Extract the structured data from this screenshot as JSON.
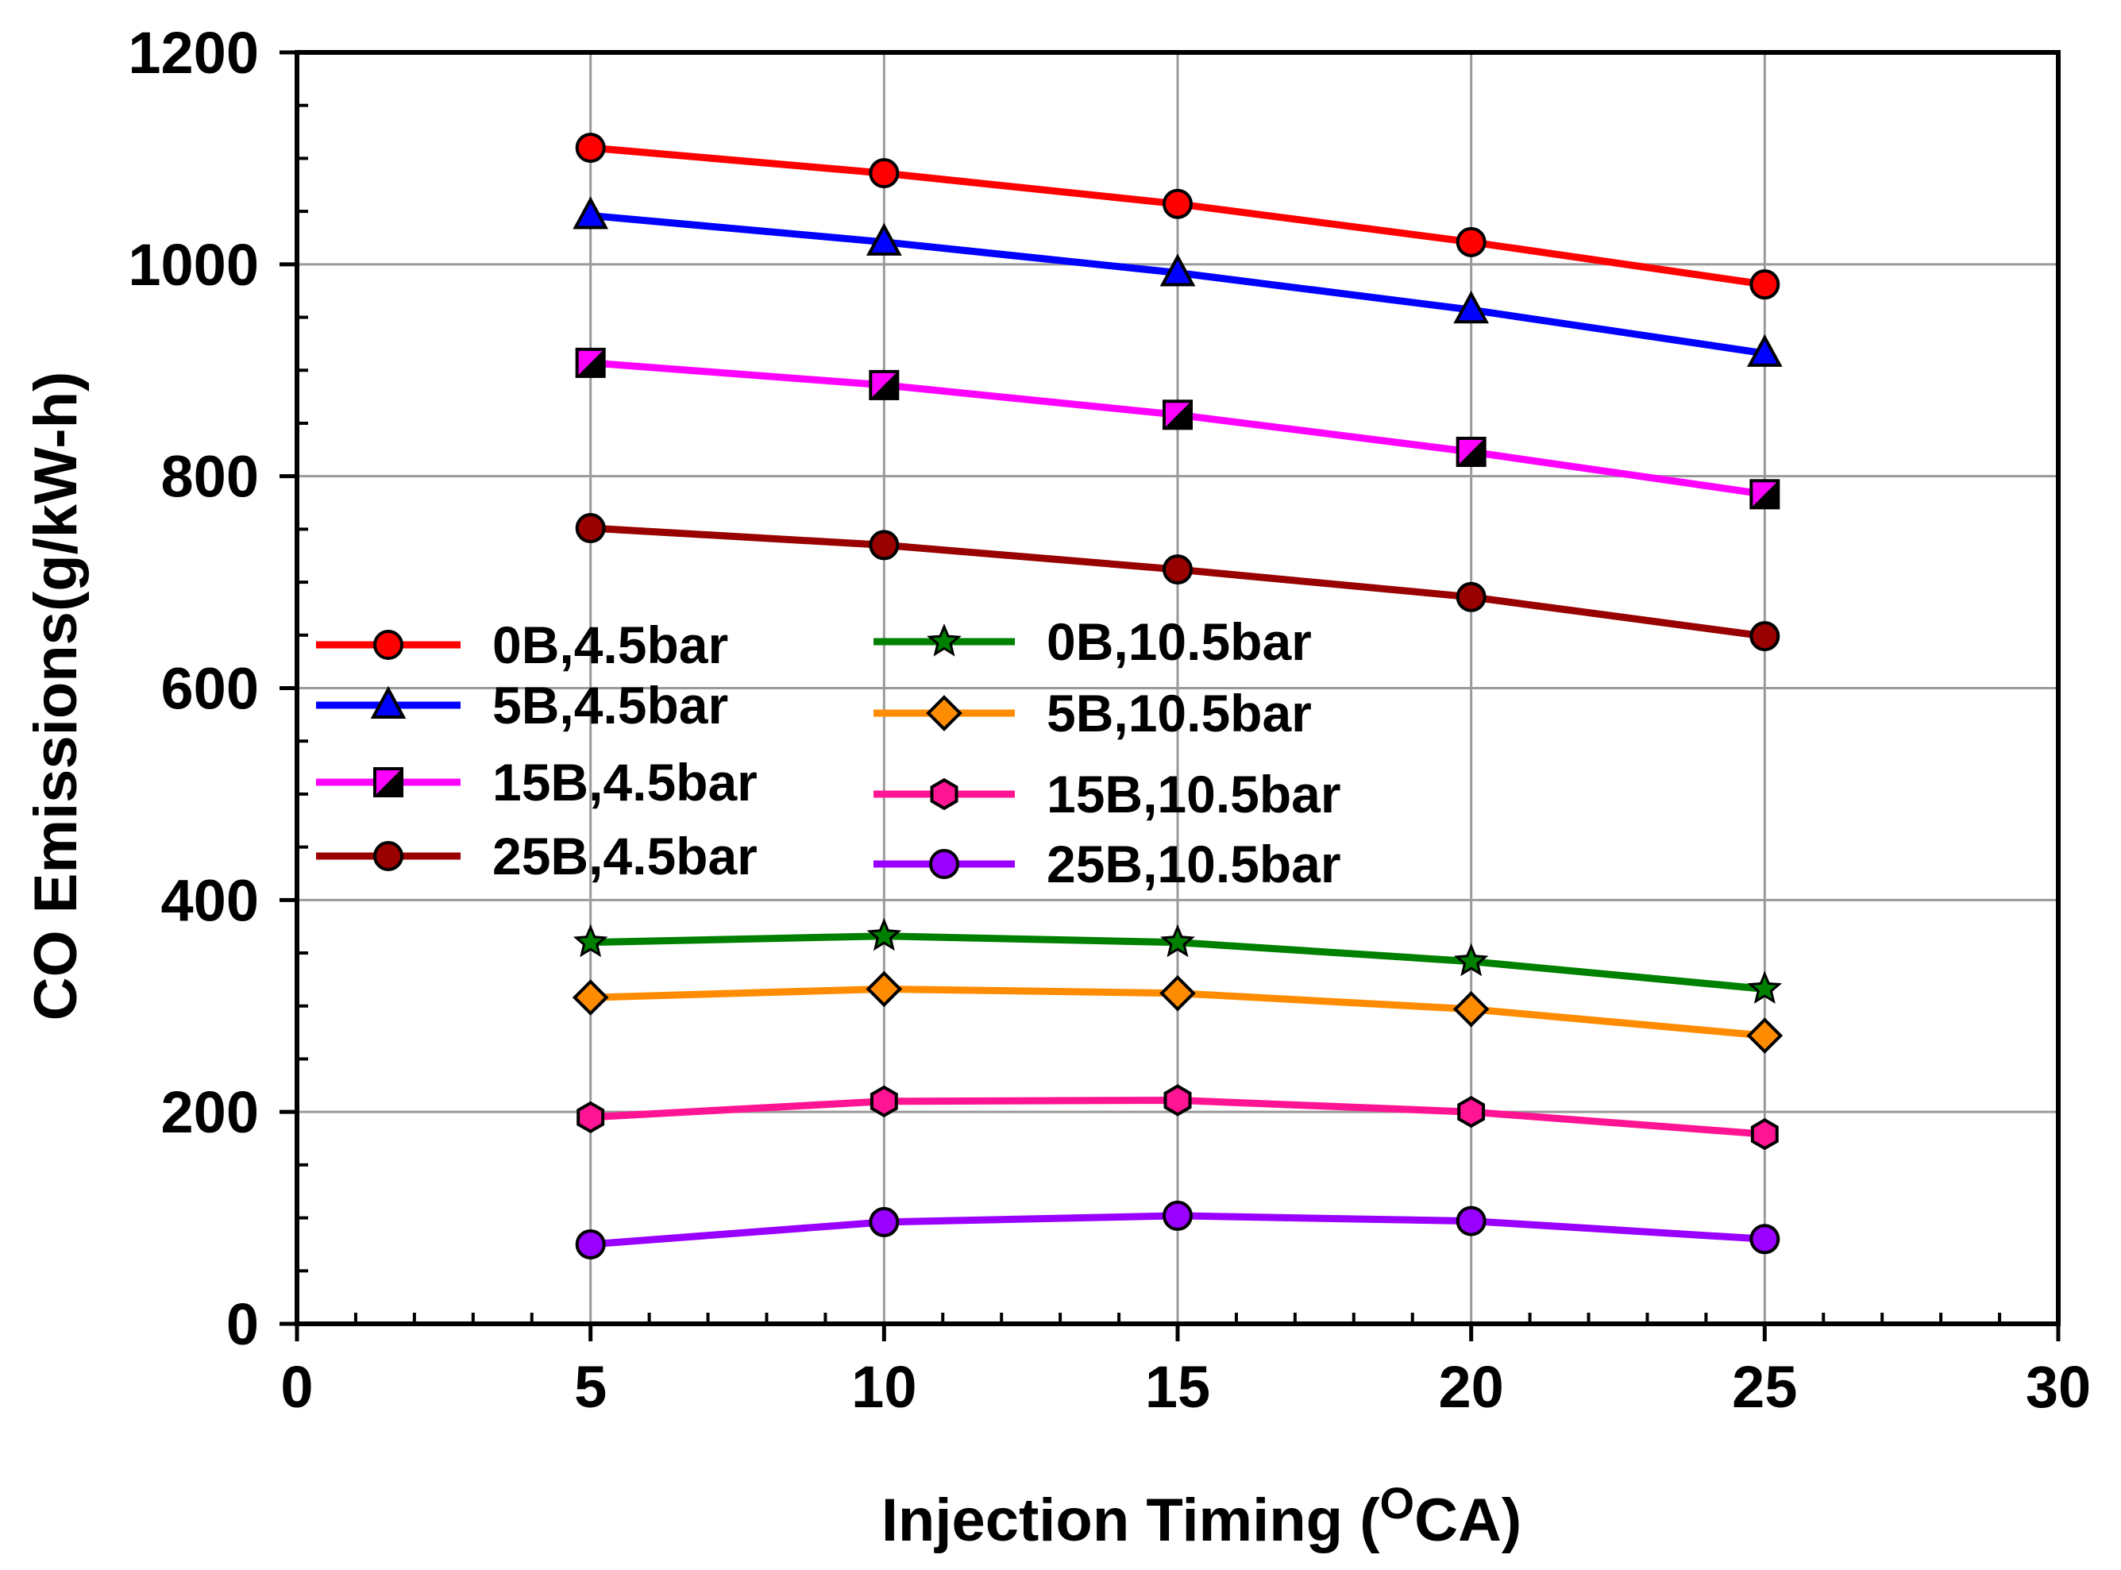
{
  "chart_data": {
    "type": "line",
    "xlabel": "Injection Timing (",
    "xlabel_superscript": "O",
    "xlabel_suffix": "CA)",
    "ylabel": "CO Emissions(g/kW-h)",
    "xlim": [
      0,
      30
    ],
    "ylim": [
      0,
      1200
    ],
    "xticks": [
      "0",
      "5",
      "10",
      "15",
      "20",
      "25",
      "30"
    ],
    "yticks": [
      "0",
      "200",
      "400",
      "600",
      "800",
      "1000",
      "1200"
    ],
    "grid": true,
    "legend_position": "center-left",
    "x": [
      5,
      10,
      15,
      20,
      25
    ],
    "series": [
      {
        "name": "0B,4.5bar",
        "color": "#ff0000",
        "marker": "circle",
        "marker_fill": "#ff0000",
        "values": [
          1110,
          1086,
          1057,
          1021,
          981
        ]
      },
      {
        "name": "5B,4.5bar",
        "color": "#0000ff",
        "marker": "triangle",
        "marker_fill": "#0000ff",
        "values": [
          1046,
          1021,
          992,
          957,
          916
        ]
      },
      {
        "name": "15B,4.5bar",
        "color": "#ff00ff",
        "marker": "square-half",
        "marker_fill": "#ff00ff",
        "values": [
          907,
          886,
          858,
          823,
          783
        ]
      },
      {
        "name": "25B,4.5bar",
        "color": "#990000",
        "marker": "circle",
        "marker_fill": "#990000",
        "values": [
          751,
          735,
          712,
          686,
          649
        ]
      },
      {
        "name": "0B,10.5bar",
        "color": "#008000",
        "marker": "star",
        "marker_fill": "#008000",
        "values": [
          360,
          366,
          360,
          342,
          316
        ]
      },
      {
        "name": "5B,10.5bar",
        "color": "#ff8c00",
        "marker": "diamond",
        "marker_fill": "#ff8c00",
        "values": [
          308,
          316,
          312,
          297,
          272
        ]
      },
      {
        "name": "15B,10.5bar",
        "color": "#ff1493",
        "marker": "hexagon",
        "marker_fill": "#ff1493",
        "values": [
          195,
          210,
          211,
          200,
          179
        ]
      },
      {
        "name": "25B,10.5bar",
        "color": "#9900ff",
        "marker": "circle",
        "marker_fill": "#9900ff",
        "values": [
          75,
          96,
          102,
          97,
          80
        ]
      }
    ]
  }
}
